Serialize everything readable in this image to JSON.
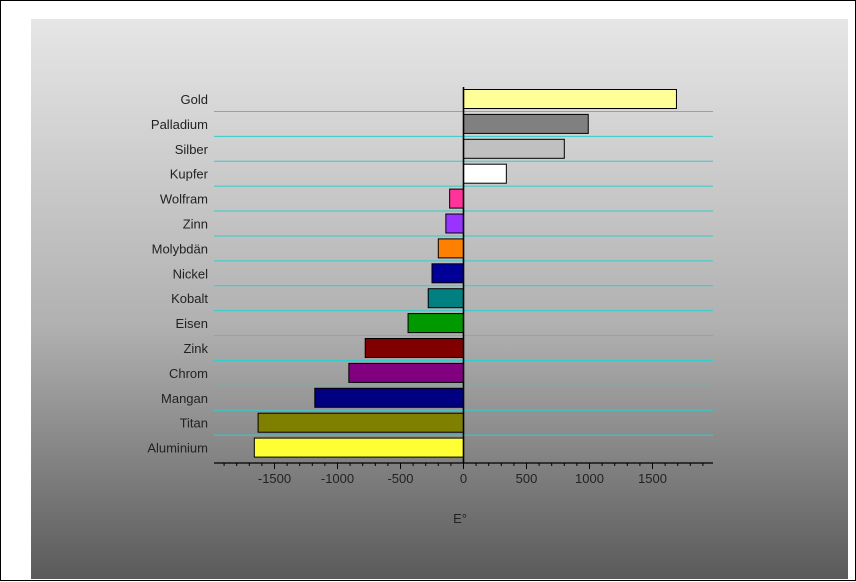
{
  "chart_data": {
    "type": "bar",
    "orientation": "horizontal",
    "categories": [
      "Gold",
      "Palladium",
      "Silber",
      "Kupfer",
      "Wolfram",
      "Zinn",
      "Molybdän",
      "Nickel",
      "Kobalt",
      "Eisen",
      "Zink",
      "Chrom",
      "Mangan",
      "Titan",
      "Aluminium"
    ],
    "values": [
      1690,
      990,
      800,
      340,
      -110,
      -140,
      -200,
      -250,
      -280,
      -440,
      -780,
      -910,
      -1180,
      -1630,
      -1660
    ],
    "bar_colors": [
      "#ffff99",
      "#808080",
      "#c0c0c0",
      "#ffffff",
      "#ff3399",
      "#9933ff",
      "#ff8000",
      "#000099",
      "#008080",
      "#009900",
      "#800000",
      "#800080",
      "#000080",
      "#808000",
      "#ffff33"
    ],
    "xlabel": "E°",
    "ylabel": "",
    "title": "",
    "xlim": [
      -1980,
      1980
    ],
    "xticks": [
      -1500,
      -1000,
      -500,
      0,
      500,
      1000,
      1500
    ],
    "xtick_labels": [
      "-1500",
      "-1000",
      "-500",
      "0",
      "500",
      "1000",
      "1500"
    ],
    "grid": "horizontal",
    "gridline_color": "#33cccc",
    "background": "gradient light-gray to dark-gray"
  }
}
